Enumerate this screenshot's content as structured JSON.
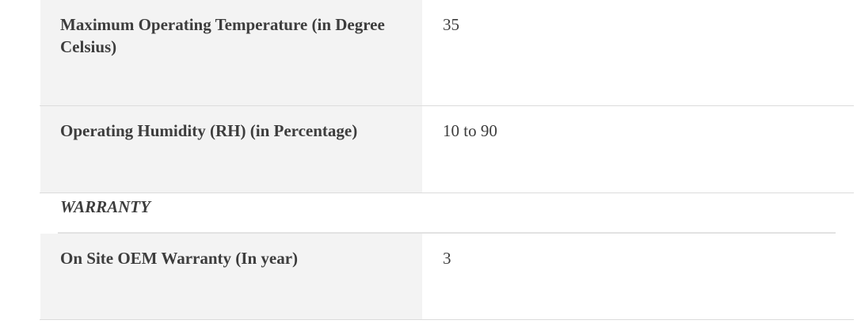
{
  "rows_before": [
    {
      "label": "Maximum Operating Temperature (in Degree Celsius)",
      "value": "35"
    },
    {
      "label": "Operating Humidity (RH) (in Percentage)",
      "value": "10 to 90"
    }
  ],
  "section": {
    "title": "WARRANTY"
  },
  "rows_after": [
    {
      "label": "On Site OEM Warranty (In year)",
      "value": "3"
    }
  ]
}
